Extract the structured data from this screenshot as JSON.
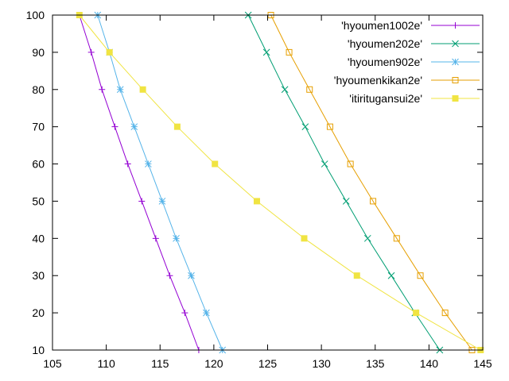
{
  "chart_data": {
    "type": "line",
    "title": "",
    "xlabel": "",
    "ylabel": "",
    "xlim": [
      105,
      145
    ],
    "ylim": [
      10,
      100
    ],
    "xticks": [
      105,
      110,
      115,
      120,
      125,
      130,
      135,
      140,
      145
    ],
    "yticks": [
      10,
      20,
      30,
      40,
      50,
      60,
      70,
      80,
      90,
      100
    ],
    "xtick_labels": [
      "105",
      "110",
      "115",
      "120",
      "125",
      "130",
      "135",
      "140",
      "145"
    ],
    "ytick_labels": [
      "10",
      "20",
      "30",
      "40",
      "50",
      "60",
      "70",
      "80",
      "90",
      "100"
    ],
    "grid": false,
    "legend_position": "top-right",
    "series": [
      {
        "name": "'hyoumen1002e'",
        "color": "#9400d3",
        "marker": "plus",
        "points": [
          [
            118.6,
            10
          ],
          [
            117.3,
            20
          ],
          [
            115.9,
            30
          ],
          [
            114.6,
            40
          ],
          [
            113.3,
            50
          ],
          [
            112.0,
            60
          ],
          [
            110.8,
            70
          ],
          [
            109.6,
            80
          ],
          [
            108.6,
            90
          ],
          [
            107.5,
            100
          ]
        ]
      },
      {
        "name": "'hyoumen202e'",
        "color": "#009e73",
        "marker": "cross",
        "points": [
          [
            141.0,
            10
          ],
          [
            138.7,
            20
          ],
          [
            136.5,
            30
          ],
          [
            134.3,
            40
          ],
          [
            132.3,
            50
          ],
          [
            130.3,
            60
          ],
          [
            128.5,
            70
          ],
          [
            126.6,
            80
          ],
          [
            124.9,
            90
          ],
          [
            123.2,
            100
          ]
        ]
      },
      {
        "name": "'hyoumen902e'",
        "color": "#56b4e9",
        "marker": "star",
        "points": [
          [
            120.8,
            10
          ],
          [
            119.3,
            20
          ],
          [
            117.9,
            30
          ],
          [
            116.5,
            40
          ],
          [
            115.2,
            50
          ],
          [
            113.9,
            60
          ],
          [
            112.6,
            70
          ],
          [
            111.3,
            80
          ],
          [
            110.3,
            90
          ],
          [
            109.2,
            100
          ]
        ]
      },
      {
        "name": "'hyoumenkikan2e'",
        "color": "#e69f00",
        "marker": "open-square",
        "points": [
          [
            144.0,
            10
          ],
          [
            141.5,
            20
          ],
          [
            139.2,
            30
          ],
          [
            137.0,
            40
          ],
          [
            134.8,
            50
          ],
          [
            132.7,
            60
          ],
          [
            130.8,
            70
          ],
          [
            128.9,
            80
          ],
          [
            127.0,
            90
          ],
          [
            125.3,
            100
          ]
        ]
      },
      {
        "name": "'itiritugansui2e'",
        "color": "#f0e442",
        "marker": "filled-square",
        "points": [
          [
            144.8,
            10
          ],
          [
            138.8,
            20
          ],
          [
            133.3,
            30
          ],
          [
            128.4,
            40
          ],
          [
            124.0,
            50
          ],
          [
            120.1,
            60
          ],
          [
            116.6,
            70
          ],
          [
            113.4,
            80
          ],
          [
            110.3,
            90
          ],
          [
            107.5,
            100
          ]
        ]
      }
    ]
  }
}
